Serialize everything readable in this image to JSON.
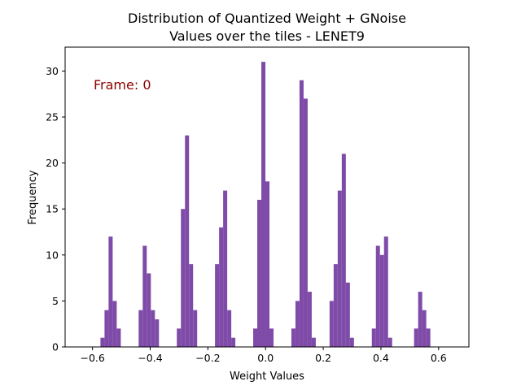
{
  "chart_data": {
    "type": "bar",
    "title_lines": [
      "Distribution of Quantized Weight + GNoise",
      "Values over the tiles - LENET9"
    ],
    "xlabel": "Weight Values",
    "ylabel": "Frequency",
    "annotation": "Frame: 0",
    "annotation_color": "#8b0000",
    "bar_color": "#7f4ba8",
    "xlim": [
      -0.695,
      0.705
    ],
    "ylim": [
      0,
      32.6
    ],
    "xticks": [
      -0.6,
      -0.4,
      -0.2,
      0.0,
      0.2,
      0.4,
      0.6
    ],
    "xtick_labels": [
      "−0.6",
      "−0.4",
      "−0.2",
      "0.0",
      "0.2",
      "0.4",
      "0.6"
    ],
    "yticks": [
      0,
      5,
      10,
      15,
      20,
      25,
      30
    ],
    "ytick_labels": [
      "0",
      "5",
      "10",
      "15",
      "20",
      "25",
      "30"
    ],
    "bin_width": 0.0141,
    "bins": [
      [
        -0.5725,
        1
      ],
      [
        -0.5584,
        4
      ],
      [
        -0.5443,
        12
      ],
      [
        -0.5302,
        5
      ],
      [
        -0.5161,
        2
      ],
      [
        -0.4401,
        4
      ],
      [
        -0.426,
        11
      ],
      [
        -0.4119,
        8
      ],
      [
        -0.3978,
        4
      ],
      [
        -0.3837,
        3
      ],
      [
        -0.3077,
        2
      ],
      [
        -0.2936,
        15
      ],
      [
        -0.2795,
        23
      ],
      [
        -0.2654,
        9
      ],
      [
        -0.2513,
        4
      ],
      [
        -0.1753,
        9
      ],
      [
        -0.1612,
        13
      ],
      [
        -0.1471,
        17
      ],
      [
        -0.133,
        4
      ],
      [
        -0.1189,
        1
      ],
      [
        -0.0429,
        2
      ],
      [
        -0.0288,
        16
      ],
      [
        -0.0147,
        31
      ],
      [
        -0.0006,
        18
      ],
      [
        0.0135,
        2
      ],
      [
        0.0895,
        2
      ],
      [
        0.1036,
        5
      ],
      [
        0.1177,
        29
      ],
      [
        0.1318,
        27
      ],
      [
        0.1459,
        6
      ],
      [
        0.16,
        1
      ],
      [
        0.2219,
        5
      ],
      [
        0.236,
        9
      ],
      [
        0.2501,
        17
      ],
      [
        0.2642,
        21
      ],
      [
        0.2783,
        7
      ],
      [
        0.2924,
        1
      ],
      [
        0.3684,
        2
      ],
      [
        0.3825,
        11
      ],
      [
        0.3966,
        10
      ],
      [
        0.4107,
        12
      ],
      [
        0.4248,
        1
      ],
      [
        0.5149,
        2
      ],
      [
        0.529,
        6
      ],
      [
        0.5431,
        4
      ],
      [
        0.5572,
        2
      ]
    ]
  }
}
